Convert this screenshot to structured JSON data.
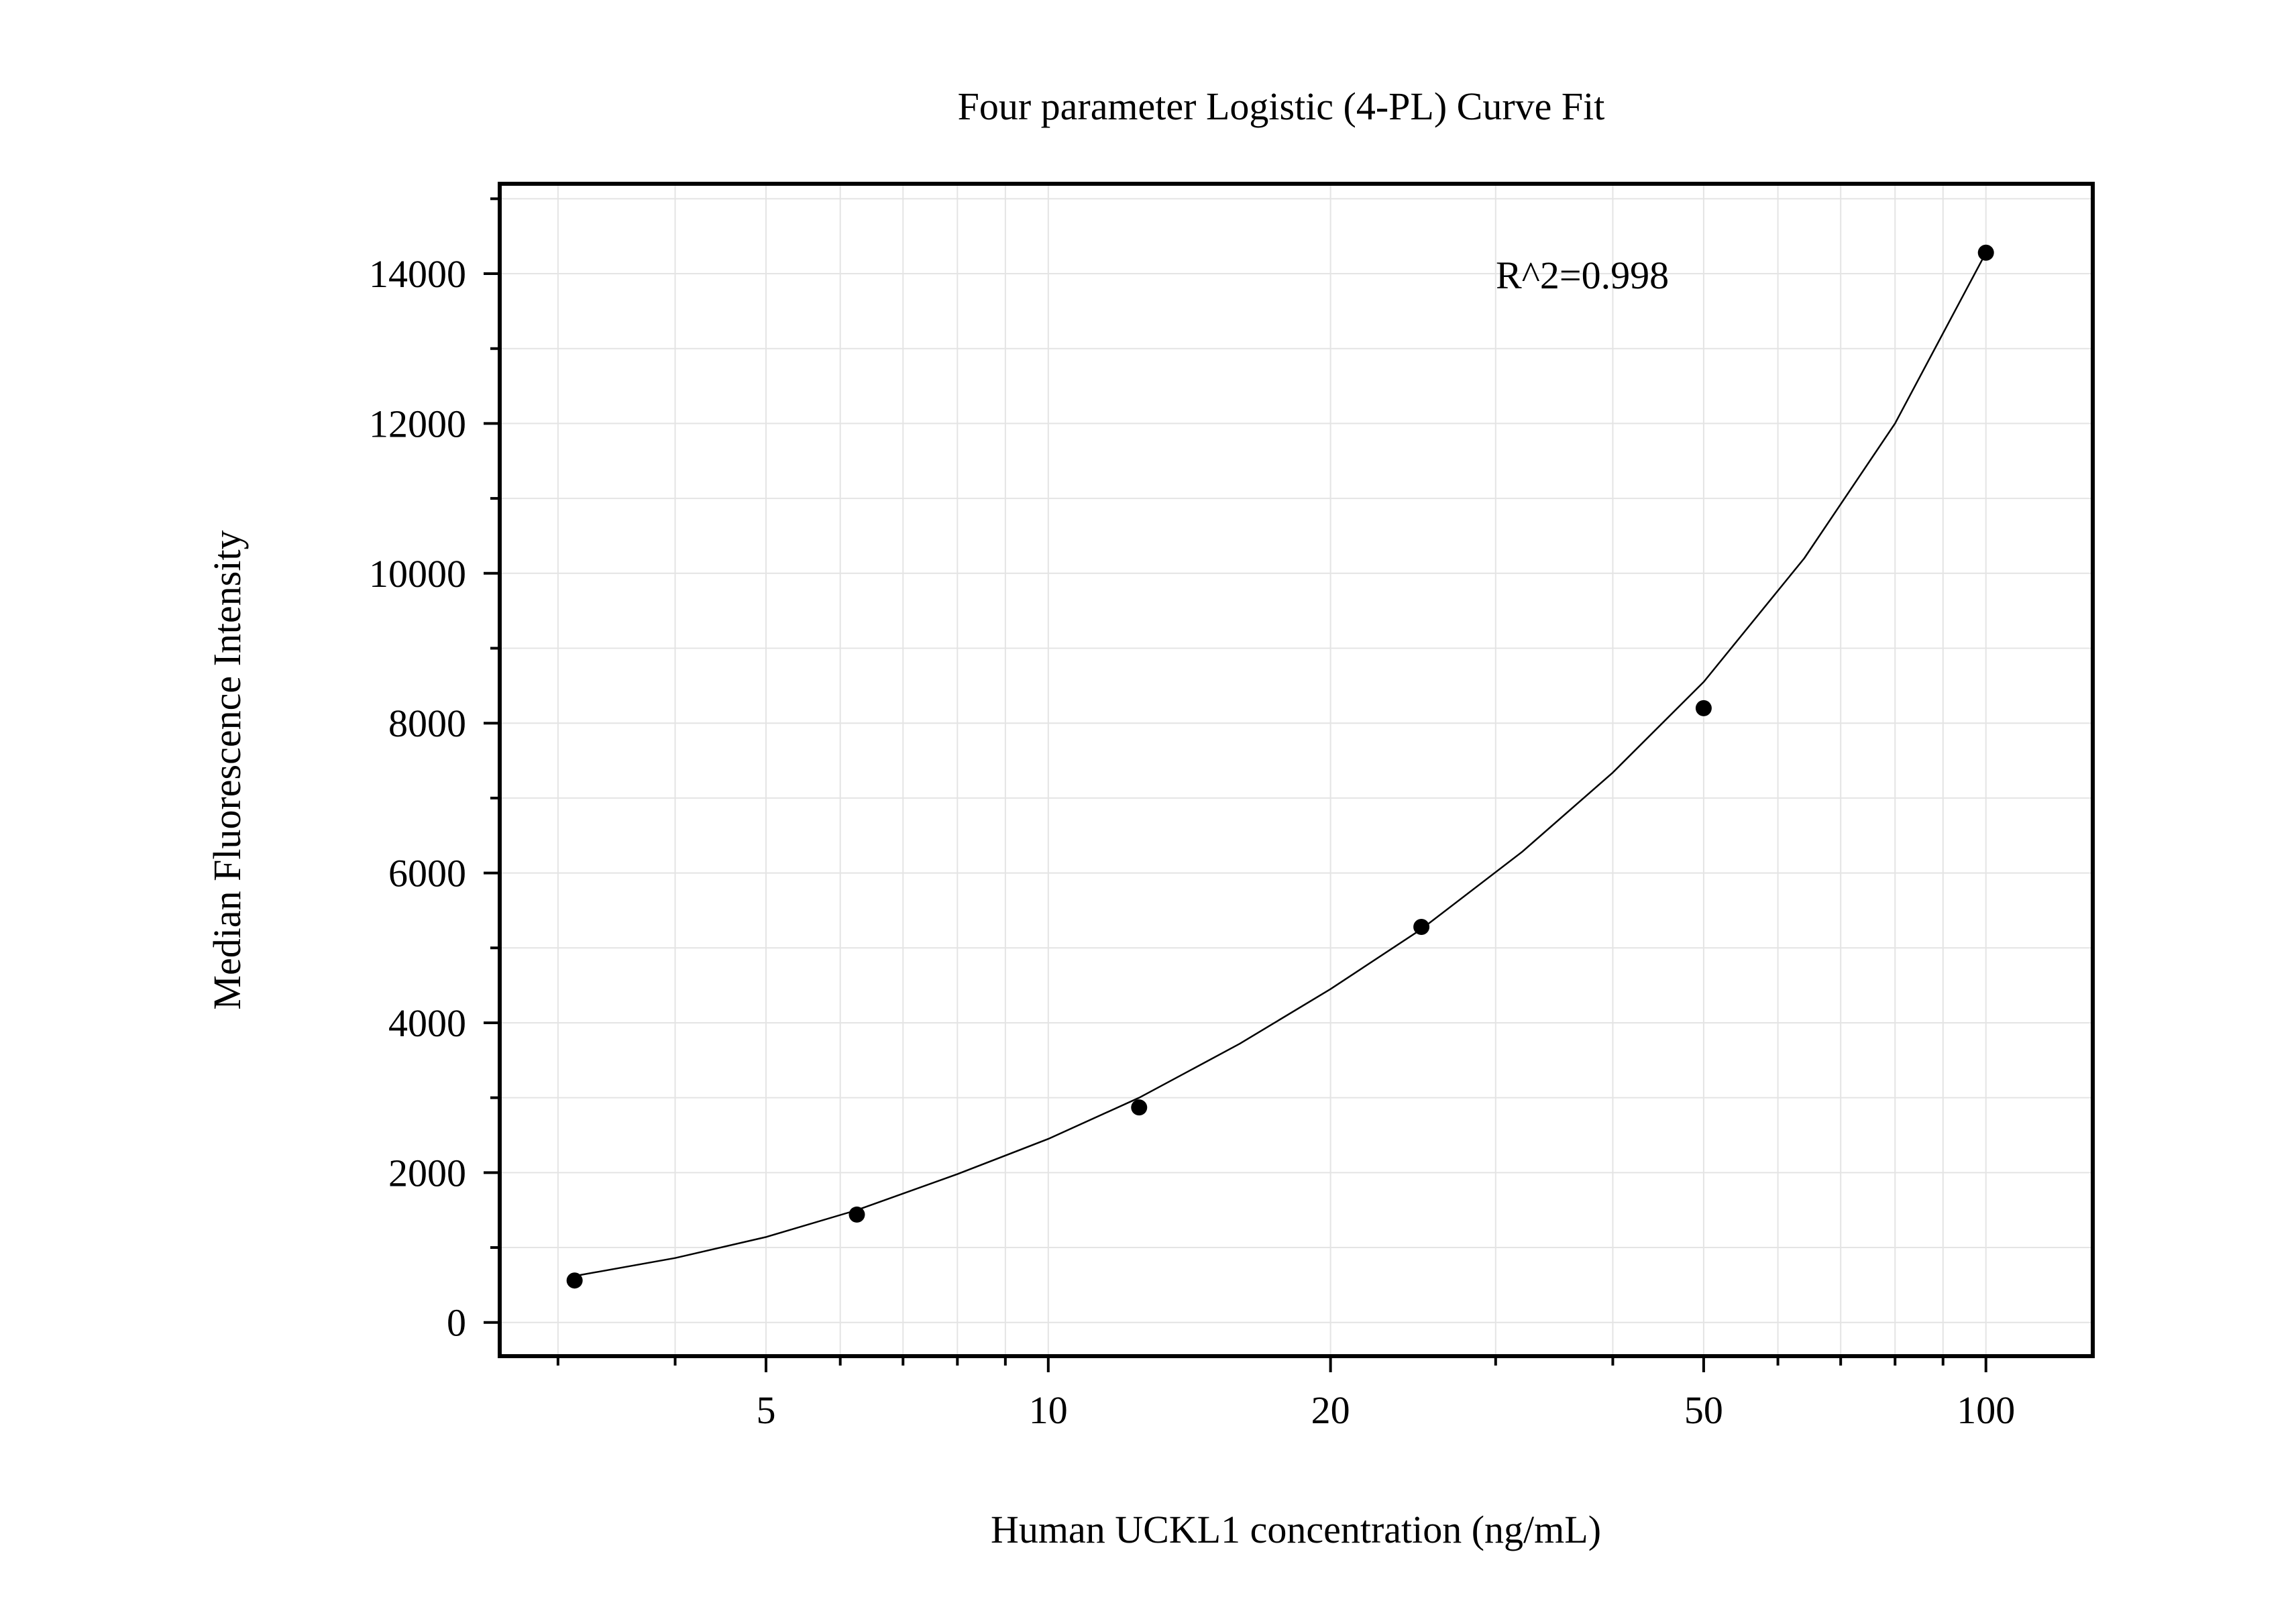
{
  "chart_data": {
    "type": "scatter",
    "title": "Four parameter Logistic (4-PL) Curve Fit",
    "xlabel": "Human UCKL1 concentration (ng/mL)",
    "ylabel": "Median Fluorescence Intensity",
    "x_scale": "log",
    "xlim": [
      2.6,
      130
    ],
    "ylim": [
      -450,
      15200
    ],
    "x_ticks": [
      5,
      10,
      20,
      50,
      100
    ],
    "y_ticks": [
      0,
      2000,
      4000,
      6000,
      8000,
      10000,
      12000,
      14000
    ],
    "grid": true,
    "annotation": "R^2=0.998",
    "series": [
      {
        "type": "scatter",
        "x": [
          3.125,
          6.25,
          12.5,
          25,
          50,
          100
        ],
        "y": [
          560,
          1440,
          2870,
          5280,
          8200,
          14280
        ]
      },
      {
        "type": "line",
        "fit": "4-PL",
        "x": [
          3.125,
          4,
          5,
          6.25,
          8,
          10,
          12.5,
          16,
          20,
          25,
          32,
          40,
          50,
          64,
          80,
          100
        ],
        "y": [
          620,
          860,
          1140,
          1500,
          1980,
          2450,
          3000,
          3720,
          4450,
          5250,
          6280,
          7340,
          8550,
          10200,
          12000,
          14280
        ]
      }
    ]
  }
}
